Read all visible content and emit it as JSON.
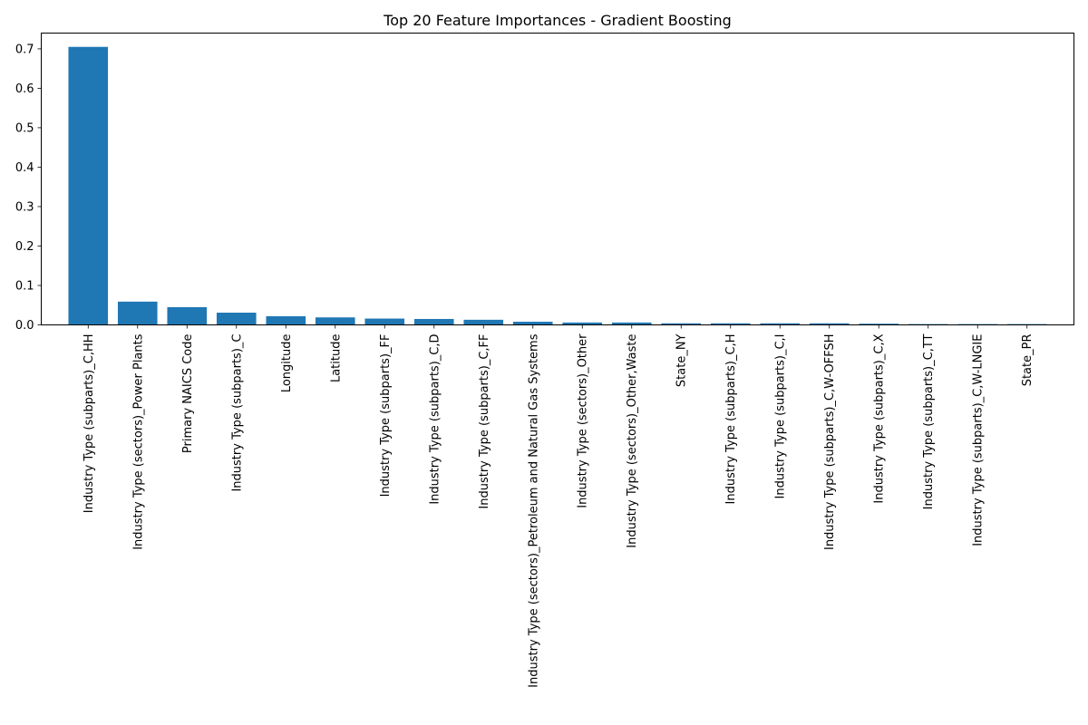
{
  "chart_data": {
    "type": "bar",
    "title": "Top 20 Feature Importances - Gradient Boosting",
    "xlabel": "",
    "ylabel": "",
    "ylim": [
      0,
      0.74
    ],
    "yticks": [
      "0.0",
      "0.1",
      "0.2",
      "0.3",
      "0.4",
      "0.5",
      "0.6",
      "0.7"
    ],
    "grid": false,
    "bar_color": "#1f77b4",
    "categories": [
      "Industry Type (subparts)_C,HH",
      "Industry Type (sectors)_Power Plants",
      "Primary NAICS Code",
      "Industry Type (subparts)_C",
      "Longitude",
      "Latitude",
      "Industry Type (subparts)_FF",
      "Industry Type (subparts)_C,D",
      "Industry Type (subparts)_C,FF",
      "Industry Type (sectors)_Petroleum and Natural Gas Systems",
      "Industry Type (sectors)_Other",
      "Industry Type (sectors)_Other,Waste",
      "State_NY",
      "Industry Type (subparts)_C,H",
      "Industry Type (subparts)_C,I",
      "Industry Type (subparts)_C,W-OFFSH",
      "Industry Type (subparts)_C,X",
      "Industry Type (subparts)_C,TT",
      "Industry Type (subparts)_C,W-LNGIE",
      "State_PR"
    ],
    "values": [
      0.705,
      0.059,
      0.045,
      0.031,
      0.022,
      0.019,
      0.016,
      0.015,
      0.013,
      0.008,
      0.006,
      0.006,
      0.004,
      0.004,
      0.004,
      0.004,
      0.003,
      0.002,
      0.002,
      0.002
    ]
  }
}
